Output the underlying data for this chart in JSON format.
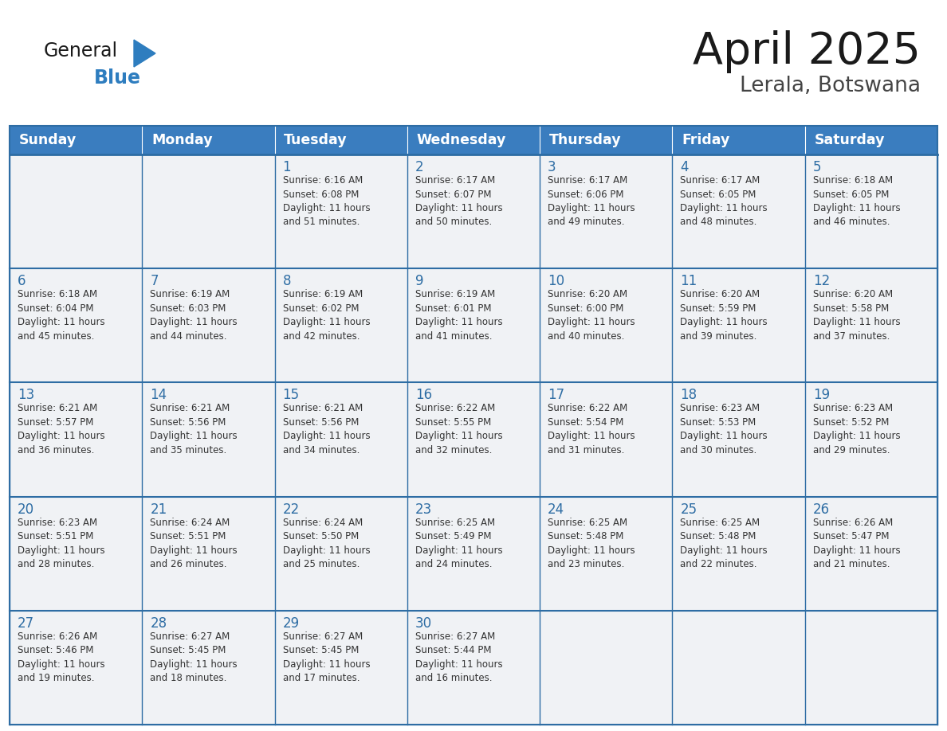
{
  "title": "April 2025",
  "subtitle": "Lerala, Botswana",
  "days_of_week": [
    "Sunday",
    "Monday",
    "Tuesday",
    "Wednesday",
    "Thursday",
    "Friday",
    "Saturday"
  ],
  "header_bg": "#3a7dbf",
  "header_text": "#ffffff",
  "cell_bg": "#f0f2f5",
  "cell_bg_white": "#ffffff",
  "border_color": "#2e6da4",
  "day_num_color": "#2e6da4",
  "text_color": "#333333",
  "weeks": [
    [
      {
        "day": null,
        "info": null
      },
      {
        "day": null,
        "info": null
      },
      {
        "day": 1,
        "info": "Sunrise: 6:16 AM\nSunset: 6:08 PM\nDaylight: 11 hours\nand 51 minutes."
      },
      {
        "day": 2,
        "info": "Sunrise: 6:17 AM\nSunset: 6:07 PM\nDaylight: 11 hours\nand 50 minutes."
      },
      {
        "day": 3,
        "info": "Sunrise: 6:17 AM\nSunset: 6:06 PM\nDaylight: 11 hours\nand 49 minutes."
      },
      {
        "day": 4,
        "info": "Sunrise: 6:17 AM\nSunset: 6:05 PM\nDaylight: 11 hours\nand 48 minutes."
      },
      {
        "day": 5,
        "info": "Sunrise: 6:18 AM\nSunset: 6:05 PM\nDaylight: 11 hours\nand 46 minutes."
      }
    ],
    [
      {
        "day": 6,
        "info": "Sunrise: 6:18 AM\nSunset: 6:04 PM\nDaylight: 11 hours\nand 45 minutes."
      },
      {
        "day": 7,
        "info": "Sunrise: 6:19 AM\nSunset: 6:03 PM\nDaylight: 11 hours\nand 44 minutes."
      },
      {
        "day": 8,
        "info": "Sunrise: 6:19 AM\nSunset: 6:02 PM\nDaylight: 11 hours\nand 42 minutes."
      },
      {
        "day": 9,
        "info": "Sunrise: 6:19 AM\nSunset: 6:01 PM\nDaylight: 11 hours\nand 41 minutes."
      },
      {
        "day": 10,
        "info": "Sunrise: 6:20 AM\nSunset: 6:00 PM\nDaylight: 11 hours\nand 40 minutes."
      },
      {
        "day": 11,
        "info": "Sunrise: 6:20 AM\nSunset: 5:59 PM\nDaylight: 11 hours\nand 39 minutes."
      },
      {
        "day": 12,
        "info": "Sunrise: 6:20 AM\nSunset: 5:58 PM\nDaylight: 11 hours\nand 37 minutes."
      }
    ],
    [
      {
        "day": 13,
        "info": "Sunrise: 6:21 AM\nSunset: 5:57 PM\nDaylight: 11 hours\nand 36 minutes."
      },
      {
        "day": 14,
        "info": "Sunrise: 6:21 AM\nSunset: 5:56 PM\nDaylight: 11 hours\nand 35 minutes."
      },
      {
        "day": 15,
        "info": "Sunrise: 6:21 AM\nSunset: 5:56 PM\nDaylight: 11 hours\nand 34 minutes."
      },
      {
        "day": 16,
        "info": "Sunrise: 6:22 AM\nSunset: 5:55 PM\nDaylight: 11 hours\nand 32 minutes."
      },
      {
        "day": 17,
        "info": "Sunrise: 6:22 AM\nSunset: 5:54 PM\nDaylight: 11 hours\nand 31 minutes."
      },
      {
        "day": 18,
        "info": "Sunrise: 6:23 AM\nSunset: 5:53 PM\nDaylight: 11 hours\nand 30 minutes."
      },
      {
        "day": 19,
        "info": "Sunrise: 6:23 AM\nSunset: 5:52 PM\nDaylight: 11 hours\nand 29 minutes."
      }
    ],
    [
      {
        "day": 20,
        "info": "Sunrise: 6:23 AM\nSunset: 5:51 PM\nDaylight: 11 hours\nand 28 minutes."
      },
      {
        "day": 21,
        "info": "Sunrise: 6:24 AM\nSunset: 5:51 PM\nDaylight: 11 hours\nand 26 minutes."
      },
      {
        "day": 22,
        "info": "Sunrise: 6:24 AM\nSunset: 5:50 PM\nDaylight: 11 hours\nand 25 minutes."
      },
      {
        "day": 23,
        "info": "Sunrise: 6:25 AM\nSunset: 5:49 PM\nDaylight: 11 hours\nand 24 minutes."
      },
      {
        "day": 24,
        "info": "Sunrise: 6:25 AM\nSunset: 5:48 PM\nDaylight: 11 hours\nand 23 minutes."
      },
      {
        "day": 25,
        "info": "Sunrise: 6:25 AM\nSunset: 5:48 PM\nDaylight: 11 hours\nand 22 minutes."
      },
      {
        "day": 26,
        "info": "Sunrise: 6:26 AM\nSunset: 5:47 PM\nDaylight: 11 hours\nand 21 minutes."
      }
    ],
    [
      {
        "day": 27,
        "info": "Sunrise: 6:26 AM\nSunset: 5:46 PM\nDaylight: 11 hours\nand 19 minutes."
      },
      {
        "day": 28,
        "info": "Sunrise: 6:27 AM\nSunset: 5:45 PM\nDaylight: 11 hours\nand 18 minutes."
      },
      {
        "day": 29,
        "info": "Sunrise: 6:27 AM\nSunset: 5:45 PM\nDaylight: 11 hours\nand 17 minutes."
      },
      {
        "day": 30,
        "info": "Sunrise: 6:27 AM\nSunset: 5:44 PM\nDaylight: 11 hours\nand 16 minutes."
      },
      {
        "day": null,
        "info": null
      },
      {
        "day": null,
        "info": null
      },
      {
        "day": null,
        "info": null
      }
    ]
  ]
}
